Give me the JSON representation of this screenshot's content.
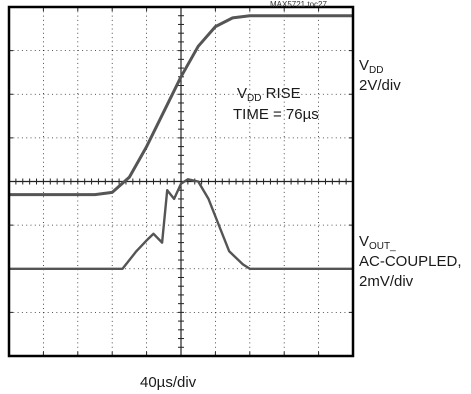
{
  "figure_id": "MAX5721 toc27",
  "chart_data": {
    "type": "line",
    "x_divisions": 10,
    "y_divisions": 8,
    "x_scale_label": "40µs/div",
    "series": [
      {
        "name_main": "V",
        "name_sub": "DD",
        "scale": "2V/div",
        "x": [
          0,
          2.5,
          3.0,
          3.5,
          4.0,
          4.5,
          5.0,
          5.5,
          6.0,
          6.5,
          7.0,
          7.5,
          10
        ],
        "y": [
          -0.3,
          -0.3,
          -0.25,
          0.1,
          0.8,
          1.6,
          2.4,
          3.1,
          3.55,
          3.75,
          3.8,
          3.8,
          3.8
        ]
      },
      {
        "name_main": "V",
        "name_sub": "OUT_",
        "lines": [
          "AC-COUPLED,",
          "2mV/div"
        ],
        "x": [
          0,
          3.3,
          3.7,
          4.0,
          4.2,
          4.45,
          4.6,
          4.8,
          5.0,
          5.2,
          5.5,
          5.8,
          6.1,
          6.4,
          6.8,
          7.0,
          7.5,
          10
        ],
        "y": [
          -2.0,
          -2.0,
          -1.6,
          -1.35,
          -1.2,
          -1.4,
          -0.2,
          -0.4,
          -0.05,
          0.05,
          0.0,
          -0.4,
          -1.0,
          -1.6,
          -1.9,
          -2.0,
          -2.0,
          -2.0
        ]
      }
    ],
    "annotation": {
      "line1_main": "V",
      "line1_sub": "DD",
      "line1_rest": " RISE",
      "line2": "TIME = 76µs"
    },
    "grid": true
  },
  "colors": {
    "trace": "#555555",
    "grid": "#222222",
    "frame": "#000000"
  }
}
